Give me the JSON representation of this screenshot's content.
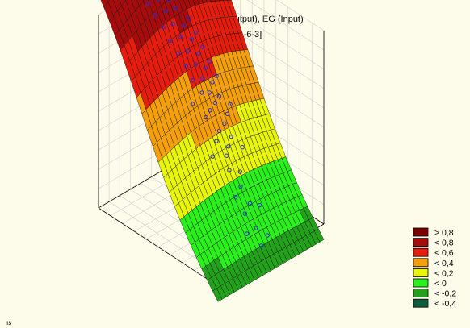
{
  "chart_data": {
    "type": "surface3d",
    "title": "DI (Target), DI (Output), EG (Input)",
    "subtitle": "[1.MLP 1-6-3]",
    "xlabel": "",
    "ylabel": "",
    "zlabel": "",
    "grid": true,
    "legend_position": "right-bottom",
    "legend": [
      {
        "label": "> 0,8",
        "color": "#7a0000"
      },
      {
        "label": "< 0,8",
        "color": "#a80b0b"
      },
      {
        "label": "< 0,6",
        "color": "#e81c0c"
      },
      {
        "label": "< 0,4",
        "color": "#f5a00a"
      },
      {
        "label": "< 0,2",
        "color": "#e9f60a"
      },
      {
        "label": "< 0",
        "color": "#2af01b"
      },
      {
        "label": "< -0,2",
        "color": "#22a21a"
      },
      {
        "label": "< -0,4",
        "color": "#0d5e3c"
      }
    ],
    "thresholds": [
      0.8,
      0.6,
      0.4,
      0.2,
      0,
      -0.2,
      -0.4
    ],
    "surface_grid": {
      "u_steps": 26,
      "v_steps": 22
    },
    "points_color": "#2a2ad6",
    "points": [
      [
        0.5,
        0.92,
        0.86
      ],
      [
        0.52,
        0.86,
        0.87
      ],
      [
        0.48,
        0.8,
        0.85
      ],
      [
        0.55,
        0.78,
        0.86
      ],
      [
        0.46,
        0.74,
        0.84
      ],
      [
        0.53,
        0.72,
        0.85
      ],
      [
        0.57,
        0.68,
        0.84
      ],
      [
        0.49,
        0.66,
        0.83
      ],
      [
        0.51,
        0.62,
        0.82
      ],
      [
        0.55,
        0.6,
        0.81
      ],
      [
        0.6,
        0.58,
        0.8
      ],
      [
        0.47,
        0.57,
        0.79
      ],
      [
        0.52,
        0.55,
        0.8
      ],
      [
        0.58,
        0.54,
        0.78
      ],
      [
        0.63,
        0.52,
        0.77
      ],
      [
        0.45,
        0.5,
        0.74
      ],
      [
        0.5,
        0.49,
        0.75
      ],
      [
        0.56,
        0.48,
        0.73
      ],
      [
        0.61,
        0.47,
        0.72
      ],
      [
        0.54,
        0.45,
        0.7
      ],
      [
        0.48,
        0.44,
        0.69
      ],
      [
        0.59,
        0.43,
        0.66
      ],
      [
        0.64,
        0.42,
        0.62
      ],
      [
        0.52,
        0.41,
        0.65
      ],
      [
        0.44,
        0.4,
        0.63
      ],
      [
        0.57,
        0.39,
        0.58
      ],
      [
        0.62,
        0.38,
        0.55
      ],
      [
        0.5,
        0.37,
        0.57
      ],
      [
        0.42,
        0.36,
        0.55
      ],
      [
        0.55,
        0.35,
        0.5
      ],
      [
        0.6,
        0.34,
        0.46
      ],
      [
        0.47,
        0.33,
        0.48
      ],
      [
        0.39,
        0.32,
        0.47
      ],
      [
        0.53,
        0.31,
        0.42
      ],
      [
        0.58,
        0.3,
        0.38
      ],
      [
        0.45,
        0.29,
        0.4
      ],
      [
        0.36,
        0.28,
        0.39
      ],
      [
        0.5,
        0.27,
        0.33
      ],
      [
        0.56,
        0.26,
        0.29
      ],
      [
        0.42,
        0.25,
        0.31
      ],
      [
        0.34,
        0.24,
        0.3
      ],
      [
        0.48,
        0.22,
        0.24
      ],
      [
        0.4,
        0.21,
        0.22
      ],
      [
        0.31,
        0.2,
        0.22
      ],
      [
        0.45,
        0.19,
        0.17
      ],
      [
        0.37,
        0.17,
        0.15
      ],
      [
        0.29,
        0.16,
        0.16
      ],
      [
        0.42,
        0.15,
        0.11
      ],
      [
        0.35,
        0.13,
        0.09
      ],
      [
        0.27,
        0.12,
        0.1
      ],
      [
        0.33,
        0.1,
        0.05
      ],
      [
        0.25,
        0.08,
        0.05
      ],
      [
        0.3,
        0.06,
        0.01
      ],
      [
        0.62,
        0.8,
        0.86
      ],
      [
        0.66,
        0.62,
        0.8
      ],
      [
        0.43,
        0.86,
        0.85
      ],
      [
        0.4,
        0.6,
        0.8
      ],
      [
        0.68,
        0.5,
        0.72
      ],
      [
        0.38,
        0.45,
        0.7
      ],
      [
        0.58,
        0.9,
        0.87
      ]
    ]
  }
}
